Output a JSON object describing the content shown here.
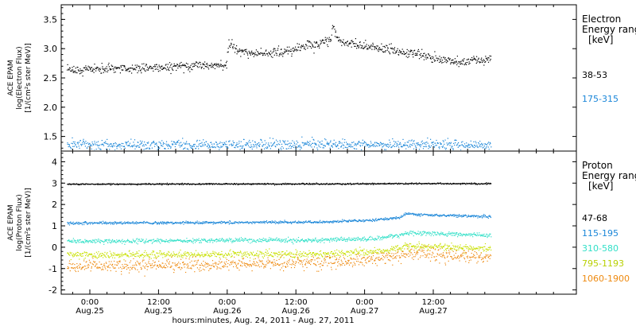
{
  "chart_data": [
    {
      "type": "scatter",
      "panel": "electron",
      "ylabel_lines": [
        "ACE EPAM",
        "log(Electron Flux)",
        "[1/(cm²s ster MeV)]"
      ],
      "ylim": [
        1.25,
        3.75
      ],
      "yticks": [
        1.5,
        2.0,
        2.5,
        3.0,
        3.5
      ],
      "ytick_labels": [
        "1.5",
        "2.0",
        "2.5",
        "3.0",
        "3.5"
      ],
      "xlim_hours": [
        -5,
        85
      ],
      "data_end_hour": 70,
      "legend_title_lines": [
        "Electron",
        "Energy ranges",
        "[keV]"
      ],
      "series": [
        {
          "name": "38-53",
          "color": "#000000",
          "noise": 0.04,
          "x": [
            -4,
            0,
            6,
            12,
            18,
            23.8,
            24.2,
            26,
            30,
            34,
            38,
            40,
            42,
            42.5,
            43,
            44,
            48,
            52,
            56,
            60,
            64,
            68,
            70
          ],
          "y": [
            2.62,
            2.66,
            2.67,
            2.68,
            2.72,
            2.74,
            3.1,
            2.95,
            2.92,
            2.95,
            3.05,
            3.08,
            3.15,
            3.45,
            3.2,
            3.12,
            3.05,
            3.0,
            2.93,
            2.85,
            2.78,
            2.8,
            2.82
          ]
        },
        {
          "name": "175-315",
          "color": "#1a86d8",
          "noise": 0.04,
          "x": [
            -4,
            20,
            40,
            60,
            70
          ],
          "y": [
            1.36,
            1.36,
            1.37,
            1.37,
            1.36
          ]
        }
      ]
    },
    {
      "type": "scatter",
      "panel": "proton",
      "ylabel_lines": [
        "ACE EPAM",
        "log(Proton Flux)",
        "[1/(cm²s ster MeV)]"
      ],
      "ylim": [
        -2.2,
        4.5
      ],
      "yticks": [
        -2,
        -1,
        0,
        1,
        2,
        3,
        4
      ],
      "ytick_labels": [
        "-2",
        "-1",
        "0",
        "1",
        "2",
        "3",
        "4"
      ],
      "xlim_hours": [
        -5,
        85
      ],
      "data_end_hour": 70,
      "legend_title_lines": [
        "Proton",
        "Energy ranges",
        "[keV]"
      ],
      "series": [
        {
          "name": "47-68",
          "color": "#000000",
          "noise": 0.015,
          "x": [
            -4,
            20,
            40,
            60,
            70
          ],
          "y": [
            2.97,
            2.98,
            2.98,
            3.0,
            2.99
          ]
        },
        {
          "name": "115-195",
          "color": "#1a86d8",
          "noise": 0.03,
          "x": [
            -4,
            20,
            40,
            50,
            54,
            55,
            60,
            70
          ],
          "y": [
            1.15,
            1.17,
            1.2,
            1.3,
            1.4,
            1.58,
            1.52,
            1.45
          ]
        },
        {
          "name": "310-580",
          "color": "#33e0c8",
          "noise": 0.05,
          "x": [
            -4,
            20,
            40,
            50,
            54,
            56,
            60,
            70
          ],
          "y": [
            0.3,
            0.33,
            0.35,
            0.42,
            0.6,
            0.7,
            0.65,
            0.58
          ]
        },
        {
          "name": "795-1193",
          "color": "#c8e000",
          "noise": 0.08,
          "x": [
            -4,
            20,
            40,
            50,
            55,
            60,
            70
          ],
          "y": [
            -0.35,
            -0.33,
            -0.3,
            -0.2,
            0.05,
            0.0,
            -0.05
          ]
        },
        {
          "name": "1060-1900",
          "color": "#ee8a10",
          "noise": 0.15,
          "x": [
            -4,
            20,
            40,
            50,
            56,
            60,
            70
          ],
          "y": [
            -0.9,
            -0.8,
            -0.7,
            -0.55,
            -0.25,
            -0.35,
            -0.45
          ]
        }
      ]
    }
  ],
  "xaxis": {
    "ticks": [
      {
        "hour": 0,
        "time": "0:00",
        "date": "Aug.25"
      },
      {
        "hour": 12,
        "time": "12:00",
        "date": "Aug.25"
      },
      {
        "hour": 24,
        "time": "0:00",
        "date": "Aug.26"
      },
      {
        "hour": 36,
        "time": "12:00",
        "date": "Aug.26"
      },
      {
        "hour": 48,
        "time": "0:00",
        "date": "Aug.27"
      },
      {
        "hour": 60,
        "time": "12:00",
        "date": "Aug.27"
      }
    ],
    "label": "hours:minutes, Aug. 24, 2011 - Aug. 27, 2011"
  }
}
